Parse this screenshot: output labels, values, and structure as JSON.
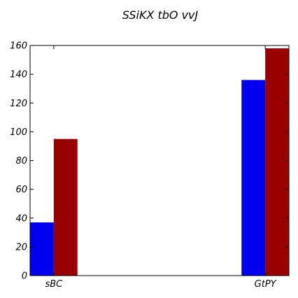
{
  "chart_data": {
    "type": "bar",
    "title": "SSiKX tbO vvJ",
    "xlabel": "",
    "ylabel": "",
    "categories": [
      "sBC",
      "GtPY"
    ],
    "series": [
      {
        "color": "#0000ee",
        "values": [
          37,
          136
        ]
      },
      {
        "color": "#990000",
        "values": [
          95,
          158
        ]
      }
    ],
    "ylim": [
      0,
      160
    ],
    "yticks": [
      0,
      20,
      40,
      60,
      80,
      100,
      120,
      140,
      160
    ],
    "grid": false,
    "legend": "none"
  }
}
